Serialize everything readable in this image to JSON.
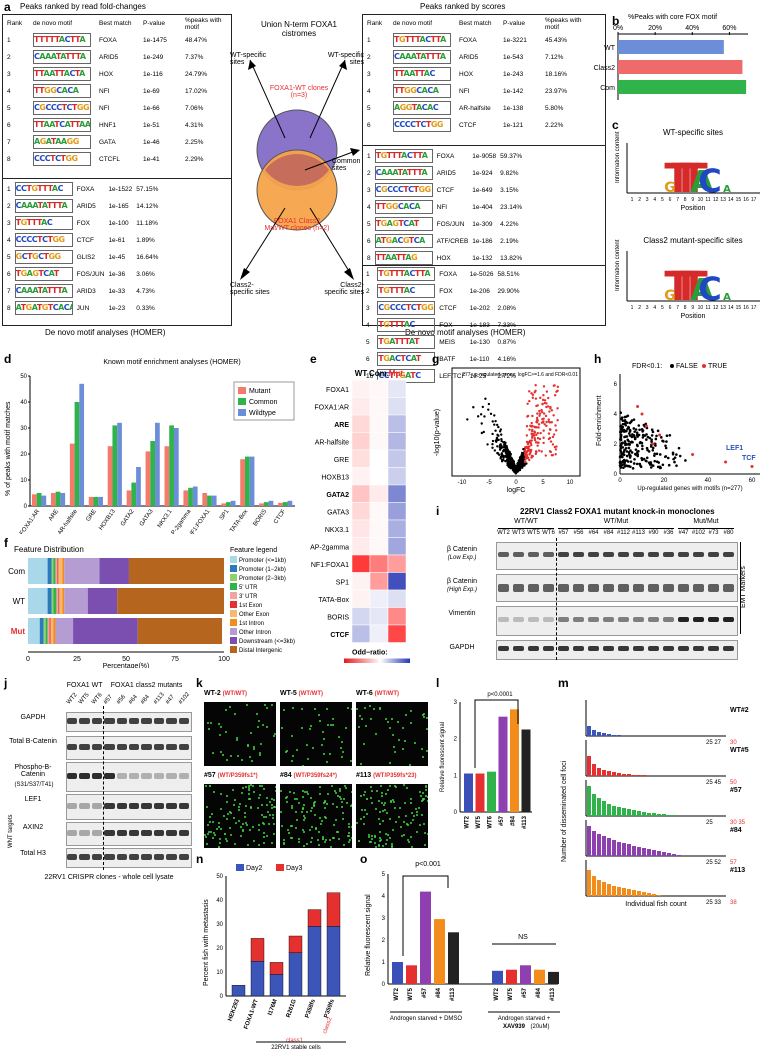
{
  "panels": {
    "a": "a",
    "b": "b",
    "c": "c",
    "d": "d",
    "e": "e",
    "f": "f",
    "g": "g",
    "h": "h",
    "i": "i",
    "j": "j",
    "k": "k",
    "l": "l",
    "m": "m",
    "n": "n",
    "o": "o"
  },
  "a": {
    "left_title": "Peaks ranked by read fold-changes",
    "right_title": "Peaks ranked by scores",
    "headers": [
      "Rank",
      "de novo motif",
      "Best match",
      "P-value",
      "%peaks with motif"
    ],
    "footer": "De novo motif analyses (HOMER)",
    "center_title": "Union N-term FOXA1 cistromes",
    "wt_clones": "FOXA1-WT clones (n=3)",
    "class2_clones": "FOXA1 Class2 Mut/WT clones (n=2)",
    "wt_specific": "WT-specific sites",
    "common": "Common sites",
    "class2_specific": "Class2-specific sites",
    "tables": [
      {
        "rows": [
          [
            "1",
            "TTTTTACTTA",
            "FOXA",
            "1e-1475",
            "48.47%"
          ],
          [
            "2",
            "CAAATATTTA",
            "ARID5",
            "1e-249",
            "7.37%"
          ],
          [
            "3",
            "TTAATTACTA",
            "HOX",
            "1e-116",
            "24.79%"
          ],
          [
            "4",
            "TTGGCACA",
            "NFI",
            "1e-69",
            "17.02%"
          ],
          [
            "5",
            "CGCCCTCTGG",
            "NFI",
            "1e-66",
            "7.06%"
          ],
          [
            "6",
            "TTAATCATTAAC",
            "HNF1",
            "1e-51",
            "4.31%"
          ],
          [
            "7",
            "AGATAAGG",
            "GATA",
            "1e-46",
            "2.25%"
          ],
          [
            "8",
            "CCCTCTGG",
            "CTCFL",
            "1e-41",
            "2.29%"
          ]
        ]
      },
      {
        "rows": [
          [
            "1",
            "CCTGTTTAC",
            "FOXA",
            "1e-1522",
            "57.15%"
          ],
          [
            "2",
            "CAAATATTTA",
            "ARID5",
            "1e-165",
            "14.12%"
          ],
          [
            "3",
            "TGTTTAC",
            "FOX",
            "1e-100",
            "11.18%"
          ],
          [
            "4",
            "CCCCTCTGG",
            "CTCF",
            "1e-61",
            "1.89%"
          ],
          [
            "5",
            "GCTGCTGG",
            "GLIS2",
            "1e-45",
            "16.64%"
          ],
          [
            "6",
            "TGAGTCAT",
            "FOS/JUN",
            "1e-36",
            "3.06%"
          ],
          [
            "7",
            "CAAATATTTA",
            "ARID3",
            "1e-33",
            "4.73%"
          ],
          [
            "8",
            "ATGATGTCACA",
            "JUN",
            "1e-23",
            "0.33%"
          ]
        ]
      },
      {
        "rows": [
          [
            "1",
            "TGTTTACTTA",
            "FOXA",
            "1e-3221",
            "45.43%"
          ],
          [
            "2",
            "CAAATATTTA",
            "ARID5",
            "1e-543",
            "7.12%"
          ],
          [
            "3",
            "TTAATTAC",
            "HOX",
            "1e-243",
            "18.16%"
          ],
          [
            "4",
            "TTGGCACA",
            "NFI",
            "1e-142",
            "23.97%"
          ],
          [
            "5",
            "AGGTACAC",
            "AR-halfsite",
            "1e-138",
            "5.80%"
          ],
          [
            "6",
            "CCCCTCTGG",
            "CTCF",
            "1e-121",
            "2.22%"
          ]
        ]
      },
      {
        "rows": [
          [
            "1",
            "TGTTTACTTA",
            "FOXA",
            "1e-9058",
            "59.37%"
          ],
          [
            "2",
            "CAAATATTTA",
            "ARID5",
            "1e-924",
            "9.82%"
          ],
          [
            "3",
            "CGCCCTCTGG",
            "CTCF",
            "1e-649",
            "3.15%"
          ],
          [
            "4",
            "TTGGCACA",
            "NFI",
            "1e-404",
            "23.14%"
          ],
          [
            "5",
            "TGAGTCAT",
            "FOS/JUN",
            "1e-309",
            "4.22%"
          ],
          [
            "6",
            "ATGACGTCA",
            "ATF/CREB",
            "1e-186",
            "2.19%"
          ],
          [
            "8",
            "TTAATTAG",
            "HOX",
            "1e-132",
            "13.82%"
          ]
        ]
      },
      {
        "rows": [
          [
            "1",
            "TGTTTACTTA",
            "FOXA",
            "1e-5026",
            "58.51%"
          ],
          [
            "2",
            "TGTTTAC",
            "FOX",
            "1e-206",
            "29.90%"
          ],
          [
            "3",
            "CGCCCTCTGG",
            "CTCF",
            "1e-202",
            "2.08%"
          ],
          [
            "4",
            "TGTTTAC",
            "FOX",
            "1e-183",
            "7.33%"
          ],
          [
            "5",
            "TGATTTAT",
            "MEIS",
            "1e-130",
            "0.87%"
          ],
          [
            "6",
            "TGACTCAT",
            "BATF",
            "1e-110",
            "4.16%"
          ],
          [
            "16",
            "CCTTGATC",
            "LEF/TCF",
            "1e-25",
            "2.72%"
          ]
        ]
      }
    ]
  },
  "b": {
    "title": "%Peaks with core FOX motif",
    "ticks": [
      "0%",
      "20%",
      "40%",
      "60%"
    ],
    "labels": [
      "WT",
      "Class2",
      "Com"
    ],
    "colors": [
      "#6c8ed8",
      "#ef6b6b",
      "#2fb34a"
    ]
  },
  "c": {
    "title1": "WT-specific sites",
    "title2": "Class2 mutant-specific sites",
    "ylabel": "Information content",
    "xlabel": "Position",
    "positions": [
      "1",
      "2",
      "3",
      "4",
      "5",
      "6",
      "7",
      "8",
      "9",
      "10",
      "11",
      "12",
      "13",
      "14",
      "15",
      "16",
      "17"
    ]
  },
  "d": {
    "title": "Known motif enrichment analyses (HOMER)",
    "ylabel": "% of peaks with motif matches",
    "legend": [
      "Mutant",
      "Common",
      "Wildtype"
    ]
  },
  "chart_data": [
    {
      "type": "bar",
      "panel": "b",
      "categories": [
        "WT",
        "Class2",
        "Com"
      ],
      "values": [
        57,
        67,
        69
      ],
      "xlim": [
        0,
        70
      ],
      "title": "%Peaks with core FOX motif"
    },
    {
      "type": "bar",
      "panel": "d",
      "title": "Known motif enrichment analyses (HOMER)",
      "ylabel": "% of peaks with motif matches",
      "ylim": [
        0,
        50
      ],
      "yticks": [
        0,
        10,
        20,
        30,
        40,
        50
      ],
      "categories": [
        "FOXA1:AR",
        "ARE",
        "AR-halfsite",
        "GRE",
        "HOXB13",
        "GATA2",
        "GATA3",
        "NKX3.1",
        "AP-2gamma",
        "NF1:FOXA1",
        "SP1",
        "TATA-Box",
        "BORIS",
        "CTCF"
      ],
      "series": [
        {
          "name": "Mutant",
          "color": "#f47a6c",
          "values": [
            4.5,
            5,
            24,
            3.5,
            23,
            6,
            21,
            23,
            6,
            5,
            1,
            18,
            1,
            1.2
          ]
        },
        {
          "name": "Common",
          "color": "#2fb34a",
          "values": [
            5,
            5.5,
            40,
            3.5,
            31,
            9,
            25,
            31,
            7,
            4,
            1.5,
            19,
            1.5,
            1.5
          ]
        },
        {
          "name": "Wildtype",
          "color": "#6c8ed8",
          "values": [
            4,
            5,
            47,
            3.5,
            32,
            15,
            32,
            30,
            7.5,
            4,
            2,
            19,
            2,
            2
          ]
        }
      ]
    },
    {
      "type": "bar",
      "panel": "l",
      "ylabel": "Relative fluorescent signal",
      "categories": [
        "WT2",
        "WT5",
        "WT6",
        "#57",
        "#84",
        "#113"
      ],
      "values": [
        1.05,
        1.05,
        1.1,
        2.6,
        2.8,
        2.25
      ],
      "ylim": [
        0,
        3
      ],
      "pvalue": "p<0.0001",
      "colors": [
        "#3b4fb8",
        "#e53030",
        "#2fb34a",
        "#8e3fb0",
        "#f28c1a",
        "#222222"
      ]
    },
    {
      "type": "bar",
      "panel": "n",
      "ylabel": "Percent fish with metastasis",
      "ylim": [
        0,
        50
      ],
      "yticks": [
        0,
        10,
        20,
        30,
        40,
        50
      ],
      "categories": [
        "HEK293",
        "FOXA1-WT",
        "I176M",
        "R261G",
        "P358fs",
        "P359fs"
      ],
      "series": [
        {
          "name": "Day2",
          "color": "#3b56b8",
          "values": [
            4.5,
            14.5,
            9,
            18,
            29,
            29
          ]
        },
        {
          "name": "Day3",
          "color": "#e53030",
          "values": [
            0,
            9.5,
            5,
            7,
            7,
            14
          ]
        }
      ],
      "legend": [
        "Day2",
        "Day3"
      ]
    },
    {
      "type": "bar",
      "panel": "o",
      "ylabel": "Relative fluorescent signal",
      "ylim": [
        0,
        5
      ],
      "yticks": [
        0,
        1,
        2,
        3,
        4,
        5
      ],
      "categories": [
        "WT2",
        "WT5",
        "#57",
        "#84",
        "#113",
        "WT2",
        "WT5",
        "#57",
        "#84",
        "#113"
      ],
      "values": [
        1.0,
        0.85,
        4.2,
        2.95,
        2.35,
        0.6,
        0.65,
        0.85,
        0.65,
        0.55
      ],
      "colors": [
        "#3b4fb8",
        "#e53030",
        "#8e3fb0",
        "#f28c1a",
        "#222222",
        "#3b4fb8",
        "#e53030",
        "#8e3fb0",
        "#f28c1a",
        "#222222"
      ],
      "pvalue": "p<0.001",
      "ns": "NS"
    }
  ],
  "e": {
    "cols": [
      "WT",
      "Com.",
      "Mut."
    ],
    "rows": [
      "FOXA1",
      "FOXA1:AR",
      "ARE",
      "AR-halfsite",
      "GRE",
      "HOXB13",
      "GATA2",
      "GATA3",
      "NKX3.1",
      "AP-2gamma",
      "NF1:FOXA1",
      "SP1",
      "TATA-Box",
      "BORIS",
      "CTCF"
    ],
    "bold": [
      "ARE",
      "GATA2",
      "CTCF"
    ],
    "values": [
      [
        0.2,
        0.1,
        -0.3
      ],
      [
        0.3,
        0.1,
        -0.4
      ],
      [
        0.6,
        0.1,
        -0.8
      ],
      [
        0.7,
        0.1,
        -0.9
      ],
      [
        0.5,
        0.0,
        -0.7
      ],
      [
        0.2,
        0.0,
        -0.6
      ],
      [
        0.9,
        0.3,
        -1.5
      ],
      [
        0.6,
        0.1,
        -1.2
      ],
      [
        0.4,
        0.1,
        -1.0
      ],
      [
        0.3,
        0.1,
        -1.1
      ],
      [
        3.0,
        2.0,
        1.5
      ],
      [
        0.2,
        1.5,
        -2.2
      ],
      [
        0.2,
        -0.2,
        -0.4
      ],
      [
        -0.5,
        -0.3,
        1.8
      ],
      [
        -0.8,
        -0.2,
        2.8
      ]
    ],
    "legend_title": "Odd−ratio:",
    "legend_ticks": [
      "4",
      "2",
      "0",
      "−2"
    ]
  },
  "f": {
    "title": "Feature Distribution",
    "rows": [
      "Com",
      "WT",
      "Mut"
    ],
    "xlabel": "Percentage(%)",
    "ticks": [
      "0",
      "25",
      "50",
      "75",
      "100"
    ],
    "legend_title": "Feature legend",
    "legend": [
      [
        "Promoter (<=1kb)",
        "#a8d8ea"
      ],
      [
        "Promoter (1−2kb)",
        "#2a7bbd"
      ],
      [
        "Promoter (2−3kb)",
        "#8fd16f"
      ],
      [
        "5' UTR",
        "#2fb34a"
      ],
      [
        "3' UTR",
        "#f4a3a3"
      ],
      [
        "1st Exon",
        "#e53030"
      ],
      [
        "Other Exon",
        "#f5b971"
      ],
      [
        "1st Intron",
        "#f28c1a"
      ],
      [
        "Other Intron",
        "#b59cd3"
      ],
      [
        "Downstream (<=3kb)",
        "#7a4fb0"
      ],
      [
        "Distal Intergenic",
        "#b5651d"
      ]
    ],
    "segments": [
      [
        10,
        2,
        1,
        1,
        1,
        0.5,
        2,
        1,
        18,
        15,
        48.5
      ],
      [
        10,
        2,
        1,
        1.5,
        1,
        0.5,
        1.5,
        1,
        12,
        15,
        54.5
      ],
      [
        6,
        2,
        1,
        1,
        1,
        0.5,
        1.5,
        1,
        9,
        33,
        43
      ]
    ]
  },
  "g": {
    "annotation": "277 up-regulated genes; logFC>=1.6 and FDR<0.01",
    "xlabel": "logFC",
    "ylabel": "-log10(p-value)"
  },
  "h": {
    "legend": "FDR<0.1:",
    "false": "FALSE",
    "true": "TRUE",
    "xlabel": "Up-regulated genes with motifs (n=277)",
    "ylabel": "Fold-enrichment",
    "lef1": "LEF1",
    "tcf": "TCF"
  },
  "i": {
    "title": "22RV1 Class2 FOXA1 mutant knock-in monoclones",
    "groups": [
      "WT/WT",
      "WT/Mut",
      "Mut/Mut"
    ],
    "lanes": [
      "WT2",
      "WT3",
      "WT5",
      "WT6",
      "#57",
      "#56",
      "#64",
      "#84",
      "#112",
      "#113",
      "#90",
      "#36",
      "#47",
      "#102",
      "#73",
      "#80"
    ],
    "rows": [
      "β Catenin",
      "β Catenin",
      "Vimentin",
      "GAPDH"
    ],
    "sub": [
      "(Low Exp.)",
      "(High Exp.)"
    ],
    "side": "EMT Markers"
  },
  "j": {
    "group1": "FOXA1 WT",
    "group2": "FOXA1 class2 mutants",
    "lanes": [
      "WT2",
      "WT5",
      "WT6",
      "#57",
      "#56",
      "#64",
      "#84",
      "#113",
      "#47",
      "#102"
    ],
    "rows": [
      "GAPDH",
      "Total B-Catenin",
      "Phospho-B-Catenin",
      "LEF1",
      "AXIN2",
      "Total H3"
    ],
    "phospho_sub": "(S31/S37/T41)",
    "side": "WNT targets",
    "footer": "22RV1 CRISPR clones - whole cell lysate"
  },
  "k": {
    "top": [
      [
        "WT-2",
        "(WT/WT)"
      ],
      [
        "WT-5",
        "(WT/WT)"
      ],
      [
        "WT-6",
        "(WT/WT)"
      ]
    ],
    "bottom": [
      [
        "#57",
        "(WT/P359fs1*)"
      ],
      [
        "#84",
        "(WT/P359fs24*)"
      ],
      [
        "#113",
        "(WT/P359fs*23)"
      ]
    ]
  },
  "m": {
    "ylabel": "Number of disseminated cell foci",
    "xlabel": "Individual fish count",
    "panels": [
      {
        "label": "WT#2",
        "end": "25 27",
        "red": "30",
        "color": "#3b56b8"
      },
      {
        "label": "WT#5",
        "end": "25 45",
        "red": "50",
        "color": "#e53030"
      },
      {
        "label": "#57",
        "end": "25",
        "red": "30 35",
        "color": "#2fb34a"
      },
      {
        "label": "#84",
        "end": "25 52",
        "red": "57",
        "color": "#8e3fb0"
      },
      {
        "label": "#113",
        "end": "25 33",
        "red": "38",
        "color": "#f28c1a"
      }
    ]
  },
  "n": {
    "footer": "22RV1 stable cells",
    "class1": "class1",
    "class2": "class2",
    "ylabel": "Percent fish with metastasis"
  },
  "o": {
    "cond1": "Androgen starved + DMSO",
    "cond2a": "Androgen starved +",
    "cond2b": "XAV939",
    "cond2c": "(20uM)"
  }
}
